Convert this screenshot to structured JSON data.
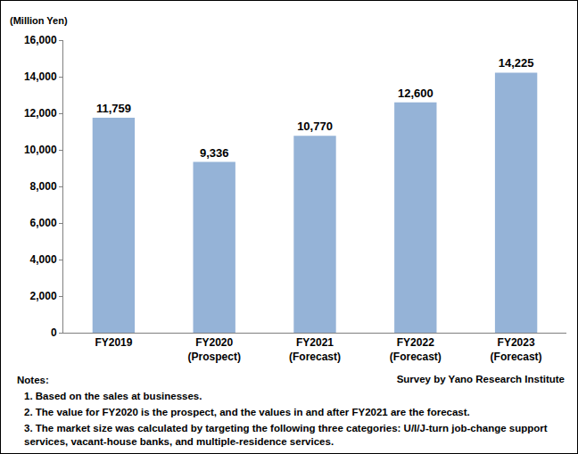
{
  "chart_data": {
    "type": "bar",
    "y_label": "(Million Yen)",
    "categories": [
      "FY2019",
      "FY2020\n(Prospect)",
      "FY2021\n(Forecast)",
      "FY2022\n(Forecast)",
      "FY2023\n(Forecast)"
    ],
    "values": [
      11759,
      9336,
      10770,
      12600,
      14225
    ],
    "value_labels": [
      "11,759",
      "9,336",
      "10,770",
      "12,600",
      "14,225"
    ],
    "data_labels": true,
    "color": "#95b3d7",
    "ylim": [
      0,
      16000
    ],
    "yticks": [
      0,
      {
        "value": 2000,
        "label": "2,000"
      },
      {
        "value": 4000,
        "label": "4,000"
      },
      {
        "value": 6000,
        "label": "6,000"
      },
      {
        "value": 8000,
        "label": "8,000"
      },
      {
        "value": 10000,
        "label": "10,000"
      },
      {
        "value": 12000,
        "label": "12,000"
      },
      {
        "value": 14000,
        "label": "14,000"
      },
      {
        "value": 16000,
        "label": "16,000"
      }
    ],
    "grid": false,
    "notes_title": "Notes:",
    "notes": [
      "1.  Based on the sales at businesses.",
      "2. The value for FY2020 is the prospect, and the values in and after FY2021 are the forecast.",
      "3. The market size was calculated by targeting the following three categories: U/I/J-turn job-change support services, vacant-house banks, and multiple-residence services."
    ],
    "source": "Survey by Yano Research Institute"
  }
}
